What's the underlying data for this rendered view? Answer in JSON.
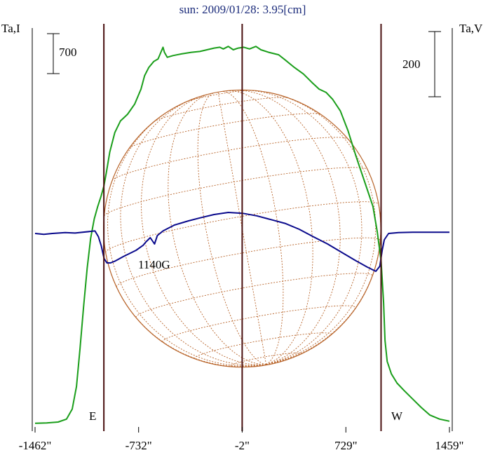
{
  "title": "sun: 2009/01/28: 3.95[cm]",
  "left_axis_label": "Ta,I",
  "right_axis_label": "Ta,V",
  "left_scale_bar": "700",
  "right_scale_bar": "200",
  "east_label": "E",
  "west_label": "W",
  "annotation": "1140G",
  "colors": {
    "intensity": "#1a9e1a",
    "polarization": "#0a0a8c",
    "limb_lines": "#4a1010",
    "grid": "#b8642a",
    "axis": "#000000"
  },
  "chart_data": {
    "type": "line",
    "x_tick_labels": [
      "-1462\"",
      "-732\"",
      "-2\"",
      "729\"",
      "1459\""
    ],
    "x_ticks": [
      -1462,
      -732,
      -2,
      729,
      1459
    ],
    "xlim": [
      -1462,
      1459
    ],
    "limb_positions": [
      -977,
      977
    ],
    "center_position": -2,
    "series": [
      {
        "name": "Ta,I",
        "points": [
          [
            -1462,
            10
          ],
          [
            -1380,
            15
          ],
          [
            -1300,
            25
          ],
          [
            -1240,
            60
          ],
          [
            -1200,
            180
          ],
          [
            -1170,
            450
          ],
          [
            -1145,
            900
          ],
          [
            -1120,
            1400
          ],
          [
            -1095,
            1860
          ],
          [
            -1070,
            2220
          ],
          [
            -1045,
            2450
          ],
          [
            -1020,
            2600
          ],
          [
            -997,
            2720
          ],
          [
            -977,
            2840
          ],
          [
            -960,
            3000
          ],
          [
            -935,
            3250
          ],
          [
            -900,
            3480
          ],
          [
            -860,
            3620
          ],
          [
            -810,
            3700
          ],
          [
            -760,
            3820
          ],
          [
            -715,
            4000
          ],
          [
            -690,
            4160
          ],
          [
            -660,
            4260
          ],
          [
            -625,
            4330
          ],
          [
            -595,
            4360
          ],
          [
            -580,
            4420
          ],
          [
            -560,
            4500
          ],
          [
            -550,
            4440
          ],
          [
            -530,
            4380
          ],
          [
            -490,
            4400
          ],
          [
            -430,
            4420
          ],
          [
            -360,
            4440
          ],
          [
            -300,
            4450
          ],
          [
            -250,
            4470
          ],
          [
            -200,
            4490
          ],
          [
            -160,
            4500
          ],
          [
            -135,
            4480
          ],
          [
            -100,
            4510
          ],
          [
            -65,
            4470
          ],
          [
            -30,
            4490
          ],
          [
            10,
            4500
          ],
          [
            50,
            4480
          ],
          [
            95,
            4510
          ],
          [
            130,
            4470
          ],
          [
            185,
            4440
          ],
          [
            255,
            4410
          ],
          [
            300,
            4350
          ],
          [
            365,
            4260
          ],
          [
            430,
            4180
          ],
          [
            490,
            4080
          ],
          [
            540,
            4000
          ],
          [
            590,
            3960
          ],
          [
            635,
            3880
          ],
          [
            690,
            3740
          ],
          [
            745,
            3500
          ],
          [
            800,
            3200
          ],
          [
            860,
            2900
          ],
          [
            920,
            2600
          ],
          [
            950,
            2300
          ],
          [
            977,
            1950
          ],
          [
            995,
            1450
          ],
          [
            1005,
            1000
          ],
          [
            1020,
            750
          ],
          [
            1050,
            600
          ],
          [
            1090,
            490
          ],
          [
            1140,
            400
          ],
          [
            1200,
            300
          ],
          [
            1260,
            200
          ],
          [
            1320,
            110
          ],
          [
            1390,
            60
          ],
          [
            1459,
            35
          ]
        ]
      },
      {
        "name": "Ta,V",
        "points": [
          [
            -1462,
            0
          ],
          [
            -1400,
            -2
          ],
          [
            -1340,
            0
          ],
          [
            -1250,
            2
          ],
          [
            -1180,
            1
          ],
          [
            -1040,
            6
          ],
          [
            -1015,
            -8
          ],
          [
            -995,
            -30
          ],
          [
            -975,
            -60
          ],
          [
            -955,
            -70
          ],
          [
            -930,
            -70
          ],
          [
            -900,
            -66
          ],
          [
            -840,
            -55
          ],
          [
            -750,
            -40
          ],
          [
            -700,
            -28
          ],
          [
            -680,
            -20
          ],
          [
            -650,
            -10
          ],
          [
            -620,
            -25
          ],
          [
            -600,
            -5
          ],
          [
            -560,
            6
          ],
          [
            -480,
            20
          ],
          [
            -380,
            30
          ],
          [
            -300,
            37
          ],
          [
            -200,
            45
          ],
          [
            -100,
            50
          ],
          [
            0,
            48
          ],
          [
            100,
            42
          ],
          [
            200,
            33
          ],
          [
            300,
            24
          ],
          [
            400,
            10
          ],
          [
            500,
            -8
          ],
          [
            600,
            -25
          ],
          [
            700,
            -45
          ],
          [
            800,
            -65
          ],
          [
            880,
            -80
          ],
          [
            940,
            -90
          ],
          [
            968,
            -78
          ],
          [
            985,
            -40
          ],
          [
            1000,
            -15
          ],
          [
            1030,
            0
          ],
          [
            1100,
            2
          ],
          [
            1200,
            3
          ],
          [
            1320,
            3
          ],
          [
            1459,
            3
          ]
        ]
      }
    ]
  }
}
